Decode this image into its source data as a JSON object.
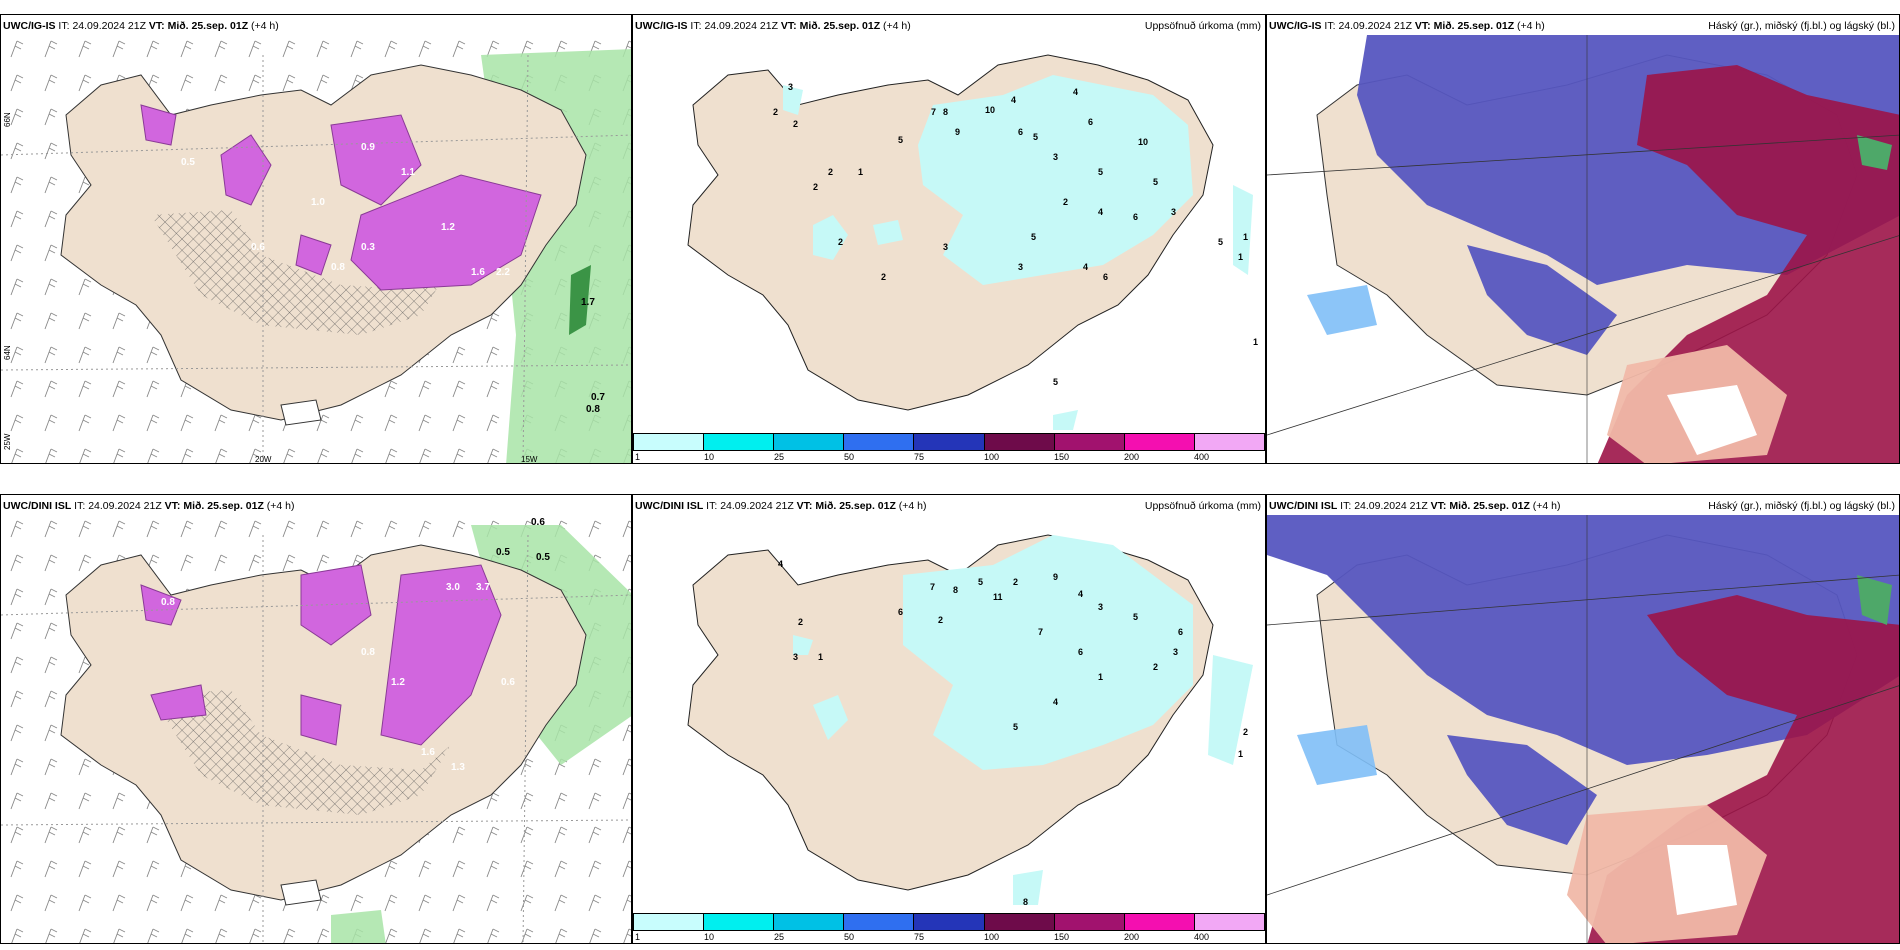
{
  "headers": {
    "top": {
      "model": "UWC/IG-IS",
      "it_label": "IT:",
      "it_value": "24.09.2024 21Z",
      "vt_label": "VT:",
      "vt_value": "Mið. 25.sep. 01Z",
      "lead": "(+4 h)"
    },
    "bottom": {
      "model": "UWC/DINI ISL",
      "it_label": "IT:",
      "it_value": "24.09.2024 21Z",
      "vt_label": "VT:",
      "vt_value": "Mið. 25.sep. 01Z",
      "lead": "(+4 h)"
    }
  },
  "titles": {
    "precip": "Uppsöfnuð úrkoma (mm)",
    "clouds": "Háský (gr.), miðský (fj.bl.) og lágský (bl.)"
  },
  "axis": {
    "lon_20w": "20W",
    "lon_15w": "15W",
    "lat_66n": "66N",
    "lat_64n": "64N",
    "lon_25w": "25W"
  },
  "colorbar": {
    "labels": [
      "1",
      "10",
      "25",
      "50",
      "75",
      "100",
      "150",
      "200",
      "400"
    ],
    "colors": [
      "#c8fdfd",
      "#00efef",
      "#00c1e5",
      "#2f6ff0",
      "#2435b8",
      "#6e0b4a",
      "#a1126e",
      "#f40fb0",
      "#f2a8f5"
    ]
  },
  "colors": {
    "land": "#efe0cf",
    "precip_light": "#c6f9f7",
    "wind_magenta": "#d166de",
    "wind_dark": "#8a3a96",
    "green": "#a8e4a7",
    "cloud_blue": "#5656c0",
    "cloud_red": "#9c1448",
    "cloud_lightblue": "#7fbff7"
  },
  "wind_values_top": [
    "0.5",
    "0.9",
    "1.1",
    "1.2",
    "1.7",
    "0.6",
    "0.3",
    "1.0",
    "0.8",
    "1.6",
    "2.2",
    "0.7",
    "0.8"
  ],
  "wind_values_bottom": [
    "0.6",
    "0.5",
    "0.5",
    "0.8",
    "3.0",
    "3.7",
    "1.3",
    "1.6",
    "0.8",
    "1.2",
    "0.6"
  ],
  "precip_values_top": [
    "3",
    "2",
    "2",
    "1",
    "2",
    "2",
    "5",
    "7",
    "8",
    "9",
    "10",
    "4",
    "6",
    "3",
    "5",
    "4",
    "2",
    "6",
    "5",
    "10",
    "5",
    "6",
    "3",
    "4",
    "5",
    "1",
    "1",
    "3",
    "2",
    "5",
    "2",
    "3",
    "4",
    "5",
    "6",
    "1"
  ],
  "precip_values_bottom": [
    "4",
    "2",
    "3",
    "1",
    "6",
    "2",
    "7",
    "8",
    "5",
    "11",
    "2",
    "9",
    "4",
    "7",
    "6",
    "3",
    "5",
    "1",
    "2",
    "4",
    "3",
    "6",
    "5",
    "2",
    "1",
    "8"
  ]
}
